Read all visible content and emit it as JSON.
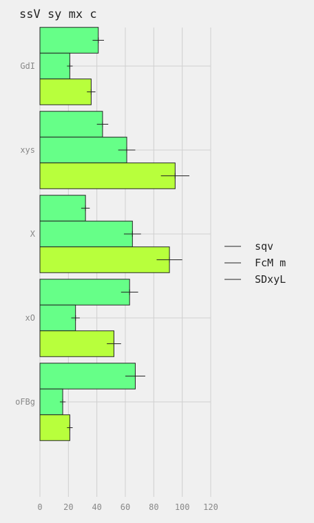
{
  "chart_data": {
    "type": "bar",
    "orientation": "horizontal",
    "title": "ssV sy mx c",
    "xlabel": "",
    "ylabel": "",
    "xlim": [
      0,
      120
    ],
    "x_ticks": [
      0,
      20,
      40,
      60,
      80,
      100,
      120
    ],
    "grid": true,
    "legend_position": "right",
    "categories": [
      "GdI",
      "xys",
      "X",
      "xO",
      "oFBg"
    ],
    "series": [
      {
        "name": "sqv",
        "color": "#66ff88",
        "values": [
          41,
          44,
          32,
          63,
          67
        ],
        "errors": [
          4,
          4,
          3,
          6,
          7
        ]
      },
      {
        "name": "FcM m",
        "color": "#66ff88",
        "values": [
          21,
          61,
          65,
          25,
          16
        ],
        "errors": [
          2,
          6,
          6,
          3,
          2
        ]
      },
      {
        "name": "SDxyL",
        "color": "#b8ff3c",
        "values": [
          36,
          95,
          91,
          52,
          21
        ],
        "errors": [
          3,
          10,
          9,
          5,
          2
        ]
      }
    ]
  }
}
